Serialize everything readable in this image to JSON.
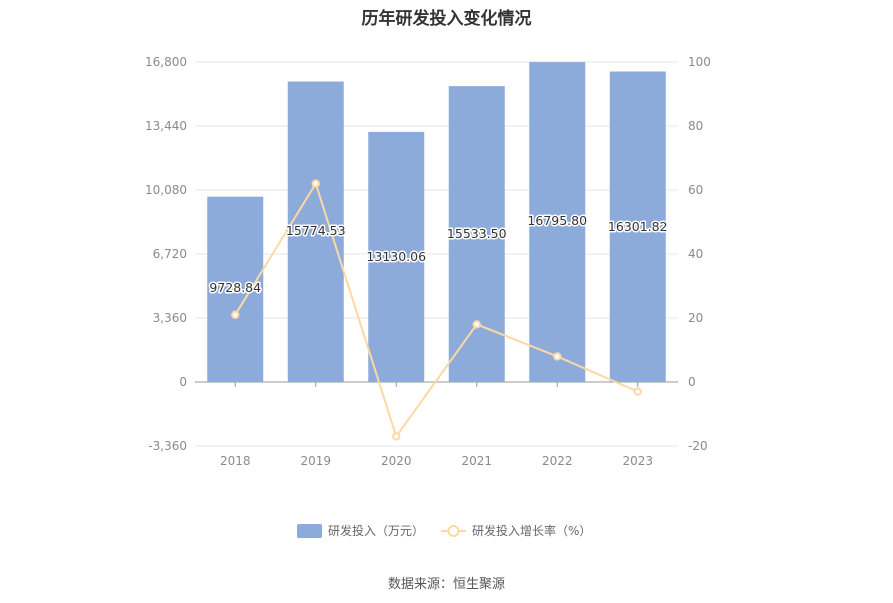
{
  "title": "历年研发投入变化情况",
  "source": "数据来源：恒生聚源",
  "chart_data": {
    "type": "bar",
    "title": "历年研发投入变化情况",
    "categories": [
      "2018",
      "2019",
      "2020",
      "2021",
      "2022",
      "2023"
    ],
    "series": [
      {
        "name": "研发投入（万元）",
        "type": "bar",
        "axis": "left",
        "color": "#8dabda",
        "values": [
          9728.84,
          15774.53,
          13130.06,
          15533.5,
          16795.8,
          16301.82
        ],
        "labels": [
          "9728.84",
          "15774.53",
          "13130.06",
          "15533.50",
          "16795.80",
          "16301.82"
        ]
      },
      {
        "name": "研发投入增长率（%）",
        "type": "line",
        "axis": "right",
        "color": "#fcd9a2",
        "values": [
          21,
          62,
          -17,
          18,
          8,
          -3
        ]
      }
    ],
    "y_left": {
      "ylim": [
        -3360,
        16800
      ],
      "ticks": [
        -3360,
        0,
        3360,
        6720,
        10080,
        13440,
        16800
      ],
      "tick_labels": [
        "-3,360",
        "0",
        "3,360",
        "6,720",
        "10,080",
        "13,440",
        "16,800"
      ]
    },
    "y_right": {
      "ylim": [
        -20,
        100
      ],
      "ticks": [
        -20,
        0,
        20,
        40,
        60,
        80,
        100
      ],
      "tick_labels": [
        "-20",
        "0",
        "20",
        "40",
        "60",
        "80",
        "100"
      ]
    },
    "grid": true,
    "legend_position": "bottom-center"
  }
}
